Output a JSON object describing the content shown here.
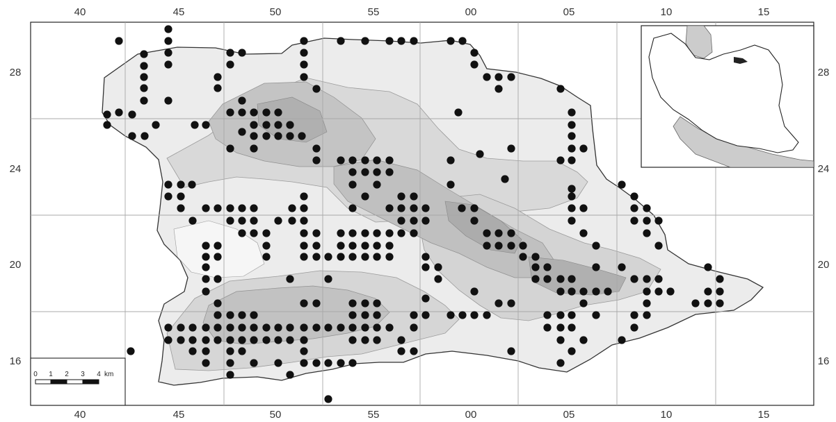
{
  "colors": {
    "ink": "#222222",
    "grid": "#a8a8a8",
    "relief_low": "#e9e9e9",
    "relief_mid": "#d6d6d6",
    "relief_high": "#c2c2c2",
    "relief_top": "#b2b2b2",
    "dot": "#111111"
  },
  "axes": {
    "top_ticks": [
      "40",
      "45",
      "50",
      "55",
      "00",
      "05",
      "10",
      "15"
    ],
    "bottom_ticks": [
      "40",
      "45",
      "50",
      "55",
      "00",
      "05",
      "10",
      "15"
    ],
    "left_ticks": [
      "28",
      "24",
      "20",
      "16"
    ],
    "right_ticks": [
      "28",
      "24",
      "20",
      "16"
    ]
  },
  "scale_bar": {
    "labels": [
      "0",
      "1",
      "2",
      "3",
      "4"
    ],
    "unit": "km"
  },
  "inset": {
    "content": "map of Iran with study area highlighted",
    "icon": "location-marker-icon"
  },
  "occurrence_dots_visible": true
}
